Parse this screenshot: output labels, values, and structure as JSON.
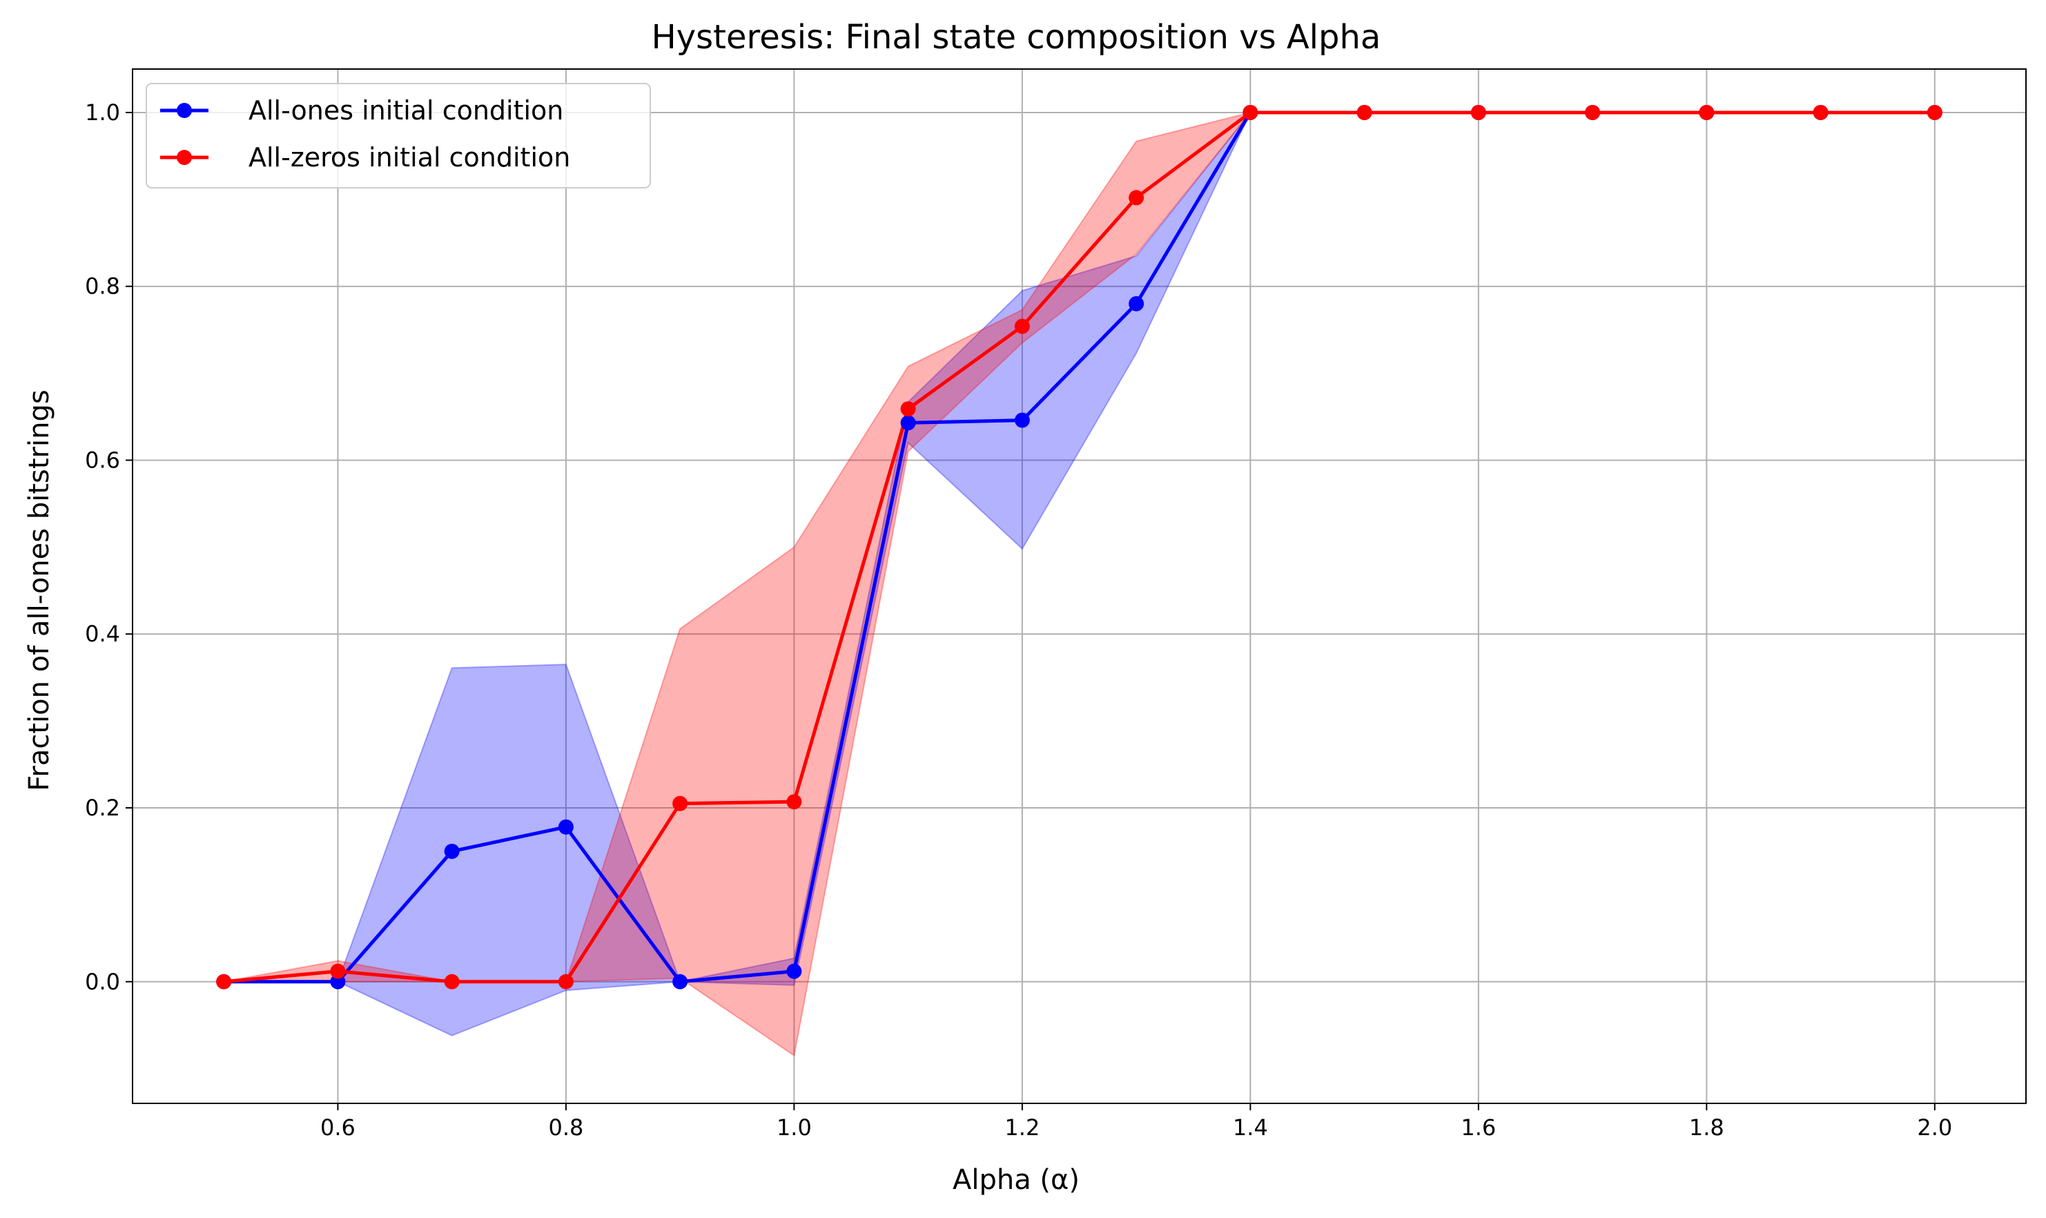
{
  "chart_data": {
    "type": "line",
    "title": "Hysteresis: Final state composition vs Alpha",
    "xlabel": "Alpha (α)",
    "ylabel": "Fraction of all-ones bitstrings",
    "xlim": [
      0.42,
      2.08
    ],
    "ylim": [
      -0.14,
      1.05
    ],
    "xticks": [
      0.6,
      0.8,
      1.0,
      1.2,
      1.4,
      1.6,
      1.8,
      2.0
    ],
    "yticks": [
      0.0,
      0.2,
      0.4,
      0.6,
      0.8,
      1.0
    ],
    "grid": true,
    "legend_position": "upper-left",
    "x": [
      0.5,
      0.6,
      0.7,
      0.8,
      0.9,
      1.0,
      1.1,
      1.2,
      1.3,
      1.4,
      1.5,
      1.6,
      1.7,
      1.8,
      1.9,
      2.0
    ],
    "series": [
      {
        "name": "All-ones initial condition",
        "color": "#0000ff",
        "values": [
          0.0,
          0.0,
          0.15,
          0.178,
          0.0,
          0.012,
          0.643,
          0.646,
          0.78,
          1.0,
          1.0,
          1.0,
          1.0,
          1.0,
          1.0,
          1.0
        ],
        "band_upper": [
          0.0,
          0.0,
          0.361,
          0.365,
          0.0,
          0.027,
          0.667,
          0.795,
          0.835,
          1.0,
          1.0,
          1.0,
          1.0,
          1.0,
          1.0,
          1.0
        ],
        "band_lower": [
          0.0,
          0.0,
          -0.062,
          -0.01,
          0.0,
          -0.004,
          0.62,
          0.498,
          0.723,
          1.0,
          1.0,
          1.0,
          1.0,
          1.0,
          1.0,
          1.0
        ]
      },
      {
        "name": "All-zeros initial condition",
        "color": "#ff0000",
        "values": [
          0.0,
          0.012,
          0.0,
          0.0,
          0.205,
          0.207,
          0.659,
          0.754,
          0.902,
          1.0,
          1.0,
          1.0,
          1.0,
          1.0,
          1.0,
          1.0
        ],
        "band_upper": [
          0.0,
          0.024,
          0.0,
          0.0,
          0.406,
          0.5,
          0.708,
          0.773,
          0.967,
          1.0,
          1.0,
          1.0,
          1.0,
          1.0,
          1.0,
          1.0
        ],
        "band_lower": [
          0.0,
          0.0,
          0.0,
          0.0,
          0.004,
          -0.085,
          0.61,
          0.735,
          0.837,
          1.0,
          1.0,
          1.0,
          1.0,
          1.0,
          1.0,
          1.0
        ]
      }
    ]
  }
}
